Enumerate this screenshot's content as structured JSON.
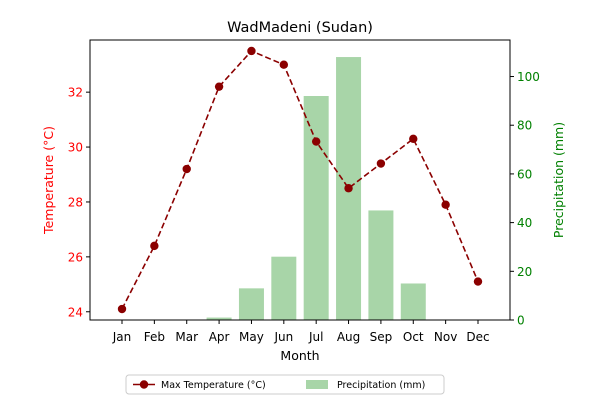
{
  "chart_data": {
    "type": "bar+line",
    "title": "WadMadeni (Sudan)",
    "xlabel": "Month",
    "ylabel_left": "Temperature (°C)",
    "ylabel_right": "Precipitation (mm)",
    "categories": [
      "Jan",
      "Feb",
      "Mar",
      "Apr",
      "May",
      "Jun",
      "Jul",
      "Aug",
      "Sep",
      "Oct",
      "Nov",
      "Dec"
    ],
    "series": [
      {
        "name": "Max Temperature (°C)",
        "type": "line",
        "axis": "left",
        "values": [
          24.1,
          26.4,
          29.2,
          32.2,
          33.5,
          33.0,
          30.2,
          28.5,
          29.4,
          30.3,
          27.9,
          25.1
        ]
      },
      {
        "name": "Precipitation (mm)",
        "type": "bar",
        "axis": "right",
        "values": [
          0,
          0,
          0,
          1,
          13,
          26,
          92,
          108,
          45,
          15,
          0,
          0
        ]
      }
    ],
    "ylim_left": [
      23.7,
      33.9
    ],
    "ylim_right": [
      0,
      115
    ],
    "yticks_left": [
      24,
      26,
      28,
      30,
      32
    ],
    "yticks_right": [
      0,
      20,
      40,
      60,
      80,
      100
    ],
    "grid": false,
    "legend_position": "bottom-center",
    "colors": {
      "line": "#8b0000",
      "bar": "#a8d5a8",
      "left_axis": "#ff0000",
      "right_axis": "#008000",
      "axis": "#000000"
    }
  }
}
